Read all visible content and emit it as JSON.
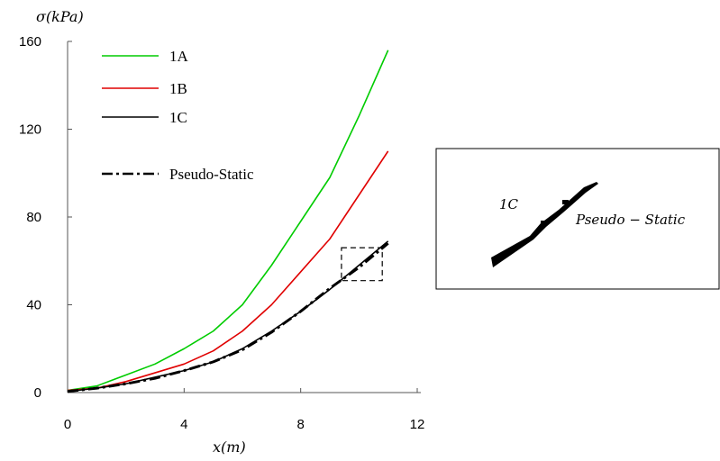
{
  "chart_data": {
    "type": "line",
    "title": "",
    "xlabel": "x(m)",
    "ylabel": "σ(kPa)",
    "xlim": [
      0,
      12
    ],
    "ylim": [
      0,
      160
    ],
    "xticks": [
      "0",
      "4",
      "8",
      "12"
    ],
    "yticks": [
      "0",
      "40",
      "80",
      "120",
      "160"
    ],
    "grid": false,
    "legend_position": "top-left",
    "x": [
      0,
      1,
      2,
      3,
      4,
      5,
      6,
      7,
      8,
      9,
      10,
      11
    ],
    "series": [
      {
        "name": "1A",
        "color": "#00cc00",
        "style": "solid",
        "values": [
          1,
          3,
          8,
          13,
          20,
          28,
          40,
          58,
          78,
          98,
          126,
          156
        ]
      },
      {
        "name": "1B",
        "color": "#e00000",
        "style": "solid",
        "values": [
          1,
          2,
          5,
          9,
          13,
          19,
          28,
          40,
          55,
          70,
          90,
          110
        ]
      },
      {
        "name": "1C",
        "color": "#000000",
        "style": "solid",
        "values": [
          0.5,
          2,
          4,
          7,
          10,
          14,
          20,
          28,
          37,
          47,
          58,
          69
        ]
      },
      {
        "name": "Pseudo-Static",
        "color": "#000000",
        "style": "dashdot",
        "values": [
          0.5,
          2,
          4,
          6.5,
          10,
          14,
          19.5,
          27.5,
          37,
          47.5,
          57,
          68
        ]
      }
    ],
    "zoom_box": {
      "x": [
        9.4,
        10.8
      ],
      "y": [
        51,
        66
      ]
    },
    "inset": {
      "labels": [
        "1C",
        "Pseudo − Static"
      ]
    }
  }
}
